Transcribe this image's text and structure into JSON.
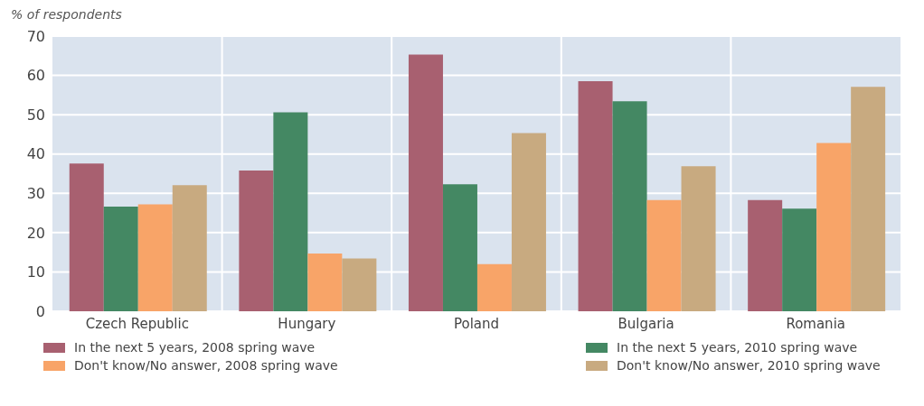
{
  "chart_data": {
    "type": "bar",
    "ylabel": "% of respondents",
    "categories": [
      "Czech Republic",
      "Hungary",
      "Poland",
      "Bulgaria",
      "Romania"
    ],
    "series": [
      {
        "name": "In the next 5 years, 2008 spring wave",
        "color": "#a86070",
        "values": [
          37.6,
          35.8,
          65.3,
          58.5,
          28.3
        ]
      },
      {
        "name": "In the next 5 years, 2010 spring wave",
        "color": "#448863",
        "values": [
          26.6,
          50.6,
          32.3,
          53.4,
          26.1
        ]
      },
      {
        "name": "Don't know/No answer, 2008 spring wave",
        "color": "#f8a468",
        "values": [
          27.2,
          14.7,
          12.0,
          28.3,
          42.8
        ]
      },
      {
        "name": "Don't know/No answer, 2010 spring wave",
        "color": "#c8aa80",
        "values": [
          32.1,
          13.4,
          45.3,
          36.9,
          57.1
        ]
      }
    ],
    "ylim": [
      0,
      70
    ],
    "yticks": [
      0,
      10,
      20,
      30,
      40,
      50,
      60,
      70
    ],
    "grid": true,
    "legend": "bottom"
  }
}
